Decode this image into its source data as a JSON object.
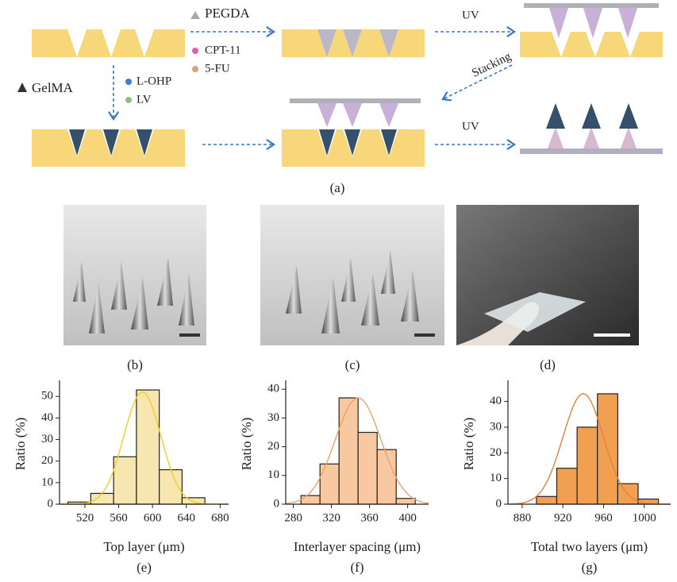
{
  "figure": {
    "diagram": {
      "pegda": "PEGDA",
      "cpt11": "CPT-11",
      "fu": "5-FU",
      "uv_top": "UV",
      "stacking": "Stacking",
      "gelma": "GelMA",
      "lohp": "L-OHP",
      "lv": "LV",
      "uv_bottom": "UV"
    },
    "panel_labels": [
      "(a)",
      "(b)",
      "(c)",
      "(d)",
      "(e)",
      "(f)",
      "(g)"
    ]
  },
  "chart_data": [
    {
      "type": "histogram",
      "x_label": "Top layer (μm)",
      "y_label": "Ratio (%)",
      "bins": [
        500,
        527,
        554,
        581,
        608,
        635,
        662
      ],
      "values": [
        1,
        5,
        22,
        53,
        16,
        3
      ],
      "color": "#f7e6b0",
      "xlim": [
        490,
        690
      ],
      "ylim": [
        0,
        56
      ],
      "xticks": [
        520,
        560,
        600,
        640,
        680
      ],
      "yticks": [
        0,
        10,
        20,
        30,
        40,
        50
      ],
      "fit": {
        "mean": 588,
        "sd": 22,
        "peak": 52,
        "color": "#f0d020"
      }
    },
    {
      "type": "histogram",
      "x_label": "Interlayer spacing (μm)",
      "y_label": "Ratio (%)",
      "bins": [
        288,
        308,
        328,
        348,
        368,
        388,
        408
      ],
      "values": [
        3,
        14,
        37,
        25,
        19,
        2
      ],
      "color": "#f8c8a0",
      "xlim": [
        272,
        422
      ],
      "ylim": [
        0,
        42
      ],
      "xticks": [
        280,
        320,
        360,
        400
      ],
      "yticks": [
        0,
        10,
        20,
        30,
        40
      ],
      "fit": {
        "mean": 348,
        "sd": 24,
        "peak": 37,
        "color": "#f0a070"
      }
    },
    {
      "type": "histogram",
      "x_label": "Total two layers (μm)",
      "y_label": "Ratio (%)",
      "bins": [
        894,
        914,
        934,
        954,
        974,
        994,
        1014
      ],
      "values": [
        3,
        14,
        30,
        43,
        8,
        2
      ],
      "color": "#f0a050",
      "xlim": [
        866,
        1026
      ],
      "ylim": [
        0,
        47
      ],
      "xticks": [
        880,
        920,
        960,
        1000
      ],
      "yticks": [
        0,
        10,
        20,
        30,
        40
      ],
      "fit": {
        "mean": 940,
        "sd": 20,
        "peak": 43,
        "color": "#e8803a"
      }
    }
  ]
}
